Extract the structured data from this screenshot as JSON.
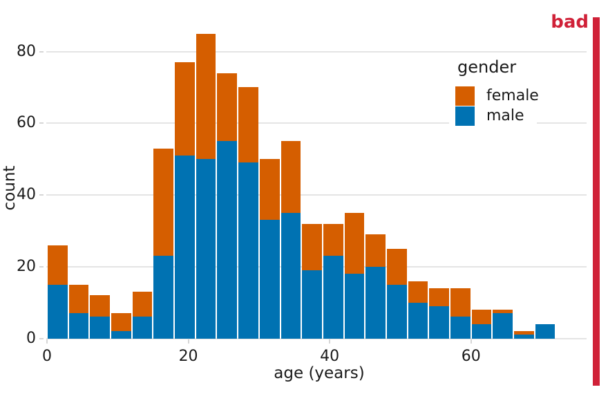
{
  "stamp": {
    "label": "bad",
    "color": "#d02138"
  },
  "colors": {
    "gridline": "#e4e4e4",
    "tick": "#d6d6d6",
    "text": "#1a1a1a",
    "background": "#ffffff",
    "female": "#D55E00",
    "male": "#0072B2"
  },
  "chart_data": {
    "type": "bar",
    "subtype": "stacked-histogram",
    "title": "",
    "xlabel": "age (years)",
    "ylabel": "count",
    "x_ticks": [
      0,
      20,
      40,
      60
    ],
    "y_ticks": [
      0,
      20,
      40,
      60,
      80
    ],
    "xlim": [
      0,
      76
    ],
    "ylim": [
      0,
      88
    ],
    "grid": "horizontal",
    "legend": {
      "title": "gender",
      "position": "upper-right-inside"
    },
    "bin_start": 0,
    "bin_width": 3,
    "stack_order_bottom_to_top": [
      "male",
      "female"
    ],
    "series": [
      {
        "name": "female",
        "color": "#D55E00",
        "values": [
          11,
          8,
          6,
          5,
          7,
          30,
          26,
          35,
          19,
          21,
          17,
          20,
          13,
          9,
          17,
          9,
          10,
          6,
          5,
          8,
          4,
          1,
          1,
          0
        ]
      },
      {
        "name": "male",
        "color": "#0072B2",
        "values": [
          15,
          7,
          6,
          2,
          6,
          23,
          51,
          50,
          55,
          49,
          33,
          35,
          19,
          23,
          18,
          20,
          15,
          10,
          9,
          6,
          4,
          7,
          1,
          4
        ]
      }
    ],
    "totals": [
      26,
      15,
      12,
      7,
      13,
      53,
      77,
      85,
      74,
      70,
      50,
      55,
      32,
      32,
      35,
      29,
      25,
      16,
      14,
      14,
      8,
      8,
      2,
      4
    ]
  }
}
